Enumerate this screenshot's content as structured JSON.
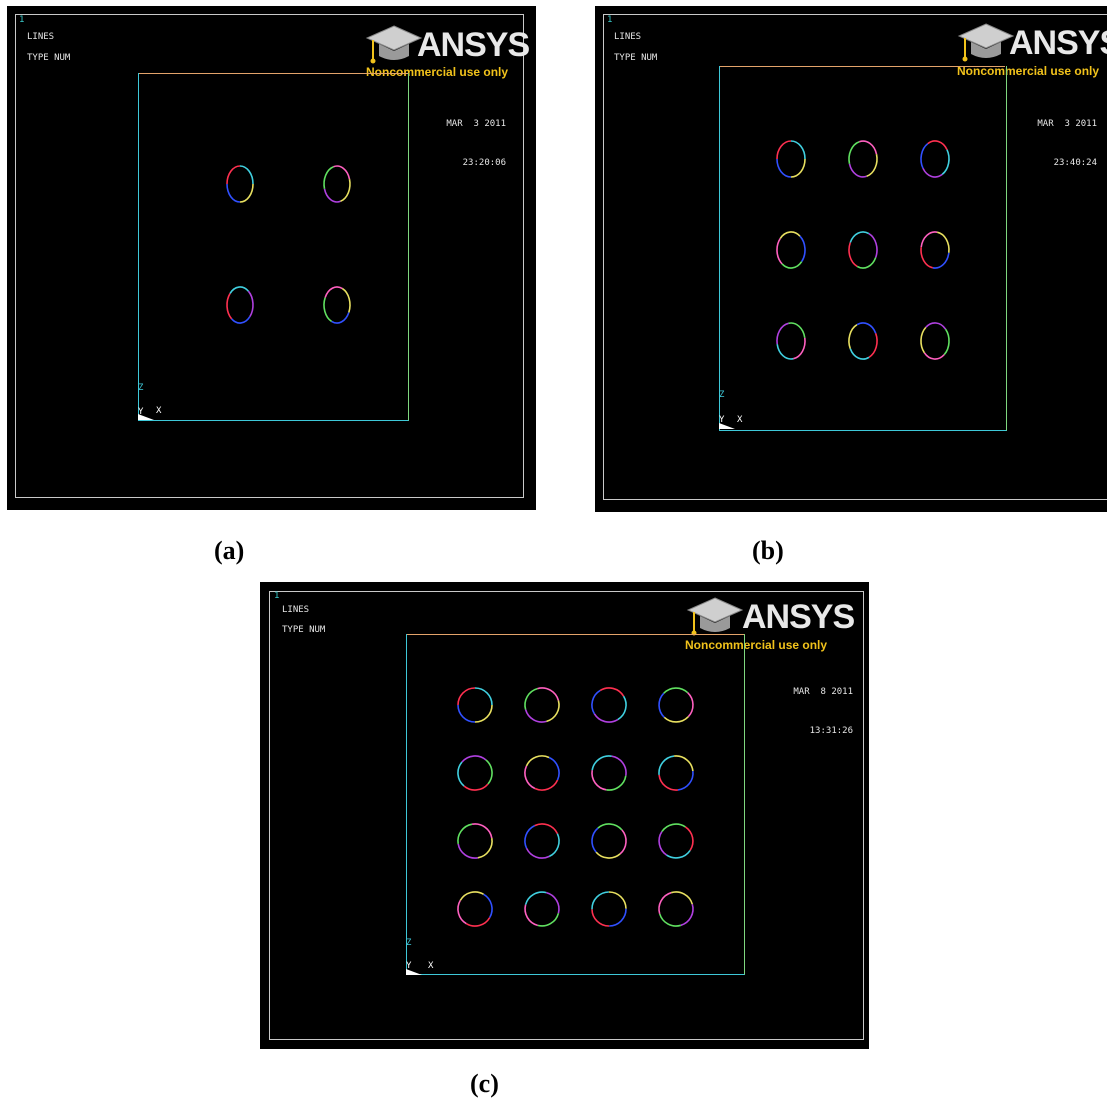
{
  "panels": [
    {
      "id": "a",
      "window_number": "1",
      "label_lines": "LINES",
      "label_type": "TYPE NUM",
      "logo_brand": "ANSYS",
      "logo_tag": "Noncommercial use only",
      "date": "MAR  3 2011",
      "time": "23:20:06",
      "axis_x": "X",
      "axis_y": "Y",
      "axis_z": "Z",
      "caption": "(a)",
      "hole_grid": {
        "rows": 2,
        "cols": 2
      }
    },
    {
      "id": "b",
      "window_number": "1",
      "label_lines": "LINES",
      "label_type": "TYPE NUM",
      "logo_brand": "ANSYS",
      "logo_tag": "Noncommercial use only",
      "date": "MAR  3 2011",
      "time": "23:40:24",
      "axis_x": "X",
      "axis_y": "Y",
      "axis_z": "Z",
      "caption": "(b)",
      "hole_grid": {
        "rows": 3,
        "cols": 3
      }
    },
    {
      "id": "c",
      "window_number": "1",
      "label_lines": "LINES",
      "label_type": "TYPE NUM",
      "logo_brand": "ANSYS",
      "logo_tag": "Noncommercial use only",
      "date": "MAR  8 2011",
      "time": "13:31:26",
      "axis_x": "X",
      "axis_y": "Y",
      "axis_z": "Z",
      "caption": "(c)",
      "hole_grid": {
        "rows": 4,
        "cols": 4
      }
    }
  ],
  "colors": {
    "background": "#000000",
    "frame": "#c9c9c9",
    "plate_left": "#3ec8d8",
    "plate_right": "#7fd77f",
    "plate_top": "#e3a36a",
    "logo_accent": "#f1c21b",
    "line_palette": [
      "#e8e060",
      "#3050ff",
      "#ff3050",
      "#40d0e0",
      "#b040e0",
      "#60e060",
      "#ff60c0"
    ]
  }
}
